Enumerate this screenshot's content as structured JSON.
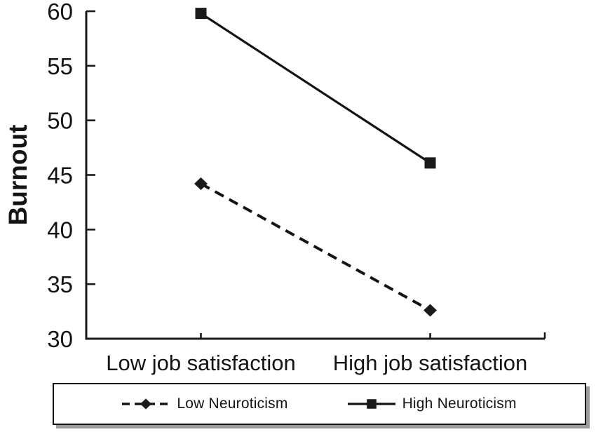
{
  "chart_data": {
    "type": "line",
    "title": "",
    "xlabel": "",
    "ylabel": "Burnout",
    "categories": [
      "Low job satisfaction",
      "High job satisfaction"
    ],
    "series": [
      {
        "name": "Low Neuroticism",
        "values": [
          44.2,
          32.6
        ],
        "line_style": "dashed",
        "marker": "diamond",
        "color": "#141414"
      },
      {
        "name": "High Neuroticism",
        "values": [
          59.8,
          46.1
        ],
        "line_style": "solid",
        "marker": "square",
        "color": "#141414"
      }
    ],
    "ylim": [
      30,
      60
    ],
    "yticks": [
      30,
      35,
      40,
      45,
      50,
      55,
      60
    ],
    "grid": false,
    "legend_position": "bottom-box",
    "axis_color": "#1a1a1a",
    "background_color": "#ffffff"
  }
}
